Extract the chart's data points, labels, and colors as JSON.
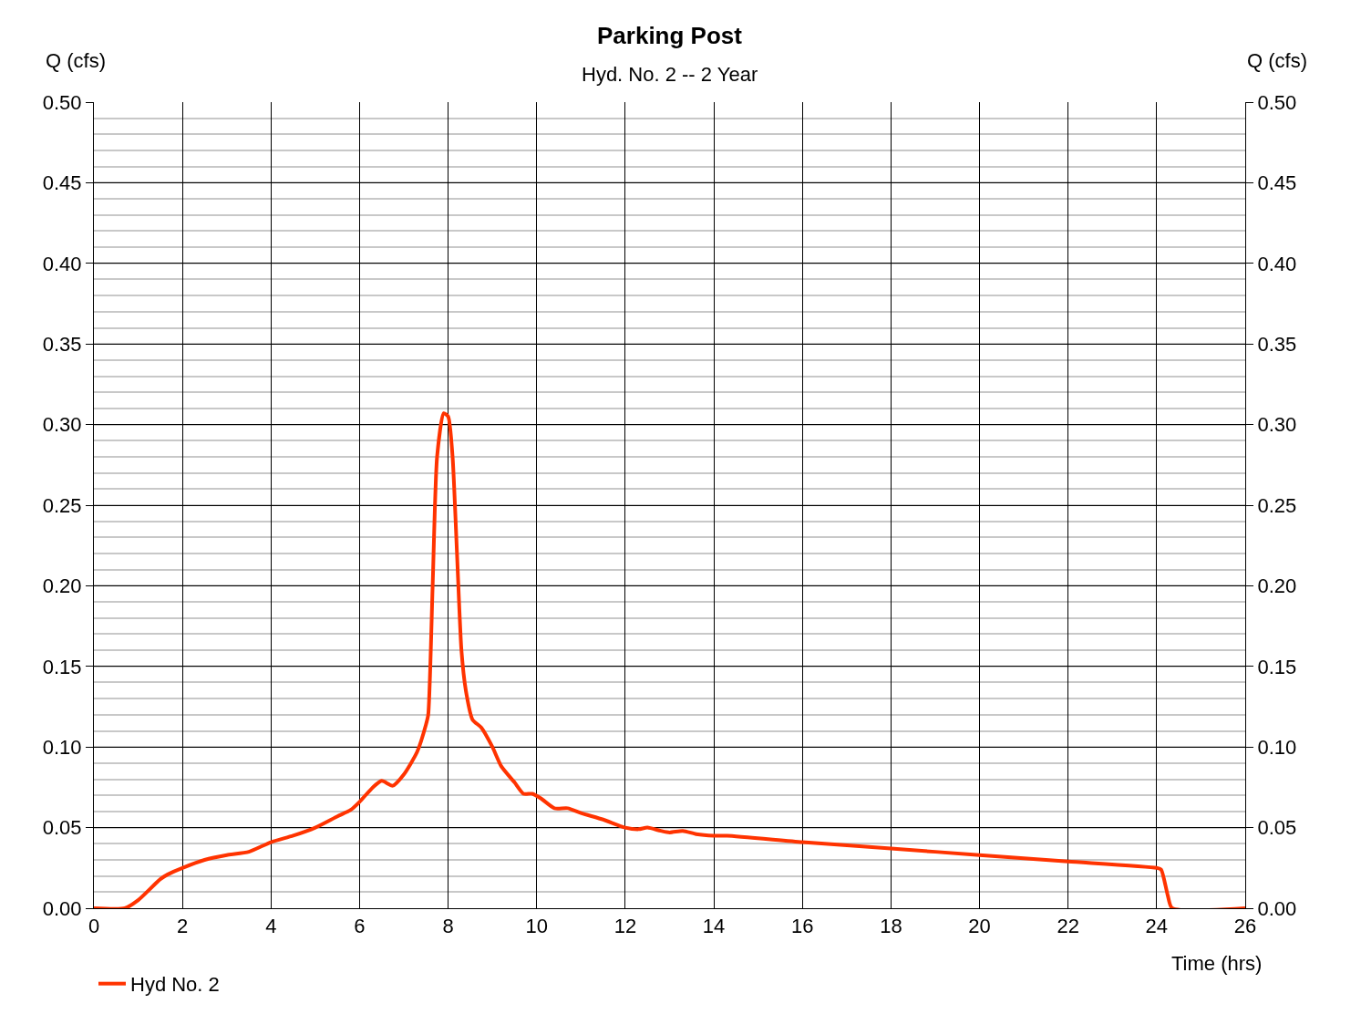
{
  "chart_data": {
    "type": "line",
    "title": "Parking Post",
    "subtitle": "Hyd. No. 2 -- 2 Year",
    "xlabel": "Time (hrs)",
    "ylabel": "Q (cfs)",
    "y2label": "Q (cfs)",
    "xlim": [
      0,
      26
    ],
    "xticks": [
      0,
      2,
      4,
      6,
      8,
      10,
      12,
      14,
      16,
      18,
      20,
      22,
      24,
      26
    ],
    "ylim": [
      0,
      0.5
    ],
    "yticks": [
      {
        "value": 0,
        "label": "0.00"
      },
      {
        "value": 0.05,
        "label": "0.05"
      },
      {
        "value": 0.1,
        "label": "0.10"
      },
      {
        "value": 0.15,
        "label": "0.15"
      },
      {
        "value": 0.2,
        "label": "0.20"
      },
      {
        "value": 0.25,
        "label": "0.25"
      },
      {
        "value": 0.3,
        "label": "0.30"
      },
      {
        "value": 0.35,
        "label": "0.35"
      },
      {
        "value": 0.4,
        "label": "0.40"
      },
      {
        "value": 0.45,
        "label": "0.45"
      },
      {
        "value": 0.5,
        "label": "0.50"
      }
    ],
    "y2lim": [
      0,
      0.5
    ],
    "y2ticks": [
      {
        "value": 0,
        "label": "0.00"
      },
      {
        "value": 0.05,
        "label": "0.05"
      },
      {
        "value": 0.1,
        "label": "0.10"
      },
      {
        "value": 0.15,
        "label": "0.15"
      },
      {
        "value": 0.2,
        "label": "0.20"
      },
      {
        "value": 0.25,
        "label": "0.25"
      },
      {
        "value": 0.3,
        "label": "0.30"
      },
      {
        "value": 0.35,
        "label": "0.35"
      },
      {
        "value": 0.4,
        "label": "0.40"
      },
      {
        "value": 0.45,
        "label": "0.45"
      },
      {
        "value": 0.5,
        "label": "0.50"
      }
    ],
    "grid": true,
    "legend": "bottom left",
    "marker": "none",
    "line_style": "solid",
    "series": [
      {
        "name": "Hyd No. 2",
        "color": "#ff3300",
        "x": [
          0,
          0.7,
          1.0,
          1.5,
          1.67,
          2.0,
          2.5,
          3.0,
          3.5,
          4.0,
          4.5,
          5.0,
          5.5,
          5.8,
          6.0,
          6.3,
          6.5,
          6.75,
          7.0,
          7.3,
          7.5,
          7.55,
          7.65,
          7.75,
          7.9,
          8.0,
          8.1,
          8.2,
          8.3,
          8.4,
          8.55,
          8.75,
          9.0,
          9.2,
          9.5,
          9.7,
          9.9,
          10.1,
          10.4,
          10.7,
          11.0,
          11.5,
          12.0,
          12.3,
          12.5,
          12.8,
          13.0,
          13.3,
          13.6,
          14.0,
          14.3,
          16,
          18,
          20,
          22,
          24,
          24.1,
          24.25,
          24.35,
          26
        ],
        "values": [
          0,
          0,
          0.005,
          0.018,
          0.021,
          0.025,
          0.03,
          0.033,
          0.035,
          0.041,
          0.045,
          0.05,
          0.057,
          0.061,
          0.066,
          0.075,
          0.079,
          0.076,
          0.083,
          0.097,
          0.114,
          0.12,
          0.2,
          0.28,
          0.307,
          0.305,
          0.28,
          0.22,
          0.16,
          0.135,
          0.117,
          0.112,
          0.1,
          0.088,
          0.078,
          0.071,
          0.071,
          0.068,
          0.062,
          0.062,
          0.059,
          0.055,
          0.05,
          0.049,
          0.05,
          0.048,
          0.047,
          0.048,
          0.046,
          0.045,
          0.045,
          0.041,
          0.037,
          0.033,
          0.029,
          0.025,
          0.024,
          0.008,
          0,
          0
        ]
      }
    ]
  }
}
